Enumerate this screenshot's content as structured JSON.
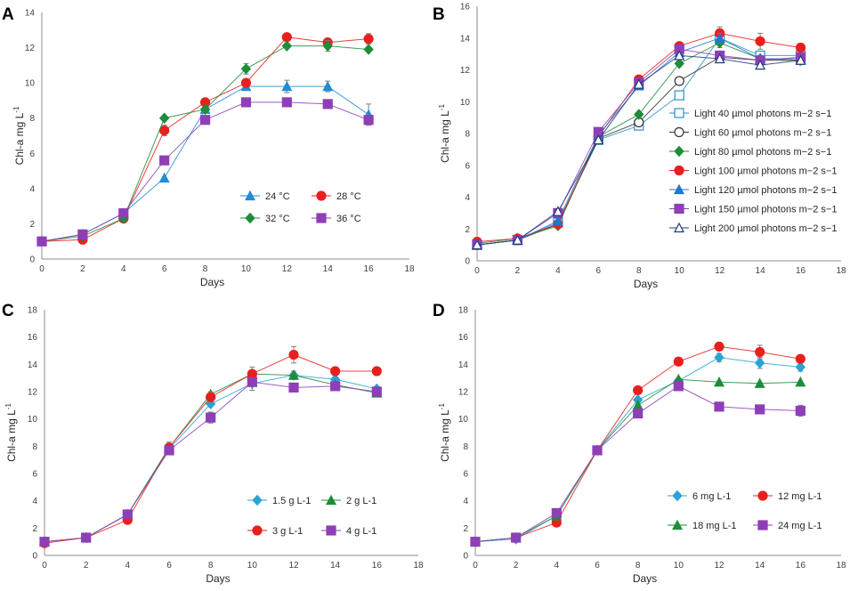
{
  "chart_data": [
    {
      "panel": "A",
      "type": "line",
      "xlabel": "Days",
      "ylabel": "Chl-a mg L",
      "ylabel_sup": "-1",
      "xlim": [
        0,
        18
      ],
      "ylim": [
        0,
        14
      ],
      "xstep": 2,
      "ystep": 2,
      "x": [
        0,
        2,
        4,
        6,
        8,
        10,
        12,
        14,
        16
      ],
      "legend_columns": 2,
      "series": [
        {
          "name": "24 °C",
          "color": "#1f8dd6",
          "marker": "triangle",
          "values": [
            1.0,
            1.4,
            2.6,
            4.6,
            8.5,
            9.8,
            9.8,
            9.8,
            8.2
          ],
          "errors": [
            0,
            0,
            0,
            0,
            0,
            0.2,
            0.35,
            0.3,
            0.6
          ]
        },
        {
          "name": "28 °C",
          "color": "#e8201d",
          "marker": "circle",
          "values": [
            1.0,
            1.1,
            2.3,
            7.3,
            8.9,
            10.0,
            12.6,
            12.3,
            12.5
          ],
          "errors": [
            0,
            0,
            0,
            0.3,
            0,
            0,
            0.2,
            0.1,
            0.3
          ]
        },
        {
          "name": "32 °C",
          "color": "#1e8c3a",
          "marker": "diamond",
          "values": [
            1.0,
            1.3,
            2.3,
            8.0,
            8.5,
            10.8,
            12.1,
            12.1,
            11.9
          ],
          "errors": [
            0,
            0,
            0,
            0,
            0,
            0.3,
            0,
            0.3,
            0
          ]
        },
        {
          "name": "36 °C",
          "color": "#8e3fb8",
          "marker": "square",
          "values": [
            1.0,
            1.4,
            2.6,
            5.6,
            7.9,
            8.9,
            8.9,
            8.8,
            7.9
          ],
          "errors": [
            0,
            0,
            0,
            0,
            0,
            0,
            0,
            0,
            0.3
          ]
        }
      ]
    },
    {
      "panel": "B",
      "type": "line",
      "xlabel": "Days",
      "ylabel": "Chl-a mg L",
      "ylabel_sup": "-1",
      "xlim": [
        0,
        18
      ],
      "ylim": [
        0,
        16
      ],
      "xstep": 2,
      "ystep": 2,
      "x": [
        0,
        2,
        4,
        6,
        8,
        10,
        12,
        14,
        16
      ],
      "legend_columns": 1,
      "series": [
        {
          "name": "Light 40 µmol photons m−2 s−1",
          "color": "#2a8fd0",
          "marker": "square-open",
          "values": [
            1.0,
            1.3,
            2.4,
            7.6,
            8.5,
            10.4,
            14.0,
            12.9,
            12.9
          ],
          "errors": [
            0,
            0,
            0,
            0,
            0,
            0.2,
            0,
            0,
            0
          ]
        },
        {
          "name": "Light 60 µmol photons m−2 s−1",
          "color": "#333333",
          "marker": "circle-open",
          "values": [
            1.0,
            1.3,
            2.3,
            7.7,
            8.7,
            11.3,
            12.8,
            12.6,
            12.6
          ],
          "errors": [
            0,
            0,
            0,
            0,
            0,
            0,
            0,
            0,
            0
          ]
        },
        {
          "name": "Light 80 µmol photons m−2 s−1",
          "color": "#1e8c3a",
          "marker": "diamond",
          "values": [
            1.1,
            1.4,
            2.2,
            7.8,
            9.2,
            12.4,
            13.7,
            12.7,
            12.6
          ],
          "errors": [
            0,
            0,
            0,
            0,
            0,
            0,
            0.3,
            0,
            0
          ]
        },
        {
          "name": "Light 100 µmol photons m−2 s−1",
          "color": "#e8201d",
          "marker": "circle",
          "values": [
            1.2,
            1.4,
            2.3,
            7.8,
            11.4,
            13.5,
            14.3,
            13.8,
            13.4
          ],
          "errors": [
            0,
            0,
            0,
            0,
            0,
            0,
            0.4,
            0.5,
            0
          ]
        },
        {
          "name": "Light 120 µmol photons m−2 s−1",
          "color": "#1f77d0",
          "marker": "triangle",
          "values": [
            1.0,
            1.3,
            2.5,
            7.9,
            11.0,
            13.1,
            14.0,
            12.7,
            12.7
          ],
          "errors": [
            0,
            0,
            0,
            0,
            0,
            0,
            0.3,
            0,
            0
          ]
        },
        {
          "name": "Light 150 µmol photons m−2 s−1",
          "color": "#8e3fb8",
          "marker": "square",
          "values": [
            1.0,
            1.3,
            3.0,
            8.1,
            11.2,
            13.3,
            12.9,
            12.6,
            12.8
          ],
          "errors": [
            0,
            0,
            0,
            0,
            0,
            0,
            0,
            0,
            0
          ]
        },
        {
          "name": "Light 200 µmol photons m−2 s−1",
          "color": "#1f3d7a",
          "marker": "triangle-open",
          "values": [
            1.0,
            1.3,
            3.1,
            7.6,
            11.1,
            12.9,
            12.7,
            12.3,
            12.6
          ],
          "errors": [
            0,
            0,
            0,
            0,
            0,
            0,
            0,
            0,
            0
          ]
        }
      ]
    },
    {
      "panel": "C",
      "type": "line",
      "xlabel": "Days",
      "ylabel": "Chl-a mg L",
      "ylabel_sup": "-1",
      "xlim": [
        0,
        18
      ],
      "ylim": [
        0,
        18
      ],
      "xstep": 2,
      "ystep": 2,
      "x": [
        0,
        2,
        4,
        6,
        8,
        10,
        12,
        14,
        16
      ],
      "legend_columns": 2,
      "series": [
        {
          "name": "1.5 g L-1",
          "color": "#29a3d8",
          "marker": "diamond",
          "values": [
            1.0,
            1.3,
            3.0,
            7.8,
            11.1,
            12.6,
            13.2,
            12.9,
            12.2
          ],
          "errors": [
            0,
            0,
            0,
            0,
            0,
            0.5,
            0,
            0,
            0
          ]
        },
        {
          "name": "2 g L-1",
          "color": "#1e8c3a",
          "marker": "triangle",
          "values": [
            1.0,
            1.3,
            3.0,
            7.9,
            11.8,
            13.3,
            13.2,
            12.5,
            11.9
          ],
          "errors": [
            0,
            0,
            0,
            0,
            0,
            0,
            0.3,
            0,
            0
          ]
        },
        {
          "name": "3 g L-1",
          "color": "#e8201d",
          "marker": "circle",
          "values": [
            0.9,
            1.3,
            2.6,
            7.9,
            11.6,
            13.3,
            14.7,
            13.5,
            13.5
          ],
          "errors": [
            0,
            0,
            0,
            0.4,
            0.4,
            0.5,
            0.6,
            0,
            0
          ]
        },
        {
          "name": "4 g L-1",
          "color": "#8e3fb8",
          "marker": "square",
          "values": [
            1.0,
            1.3,
            3.0,
            7.7,
            10.1,
            12.7,
            12.3,
            12.4,
            12.0
          ],
          "errors": [
            0,
            0,
            0,
            0,
            0.4,
            0,
            0,
            0,
            0
          ]
        }
      ]
    },
    {
      "panel": "D",
      "type": "line",
      "xlabel": "Days",
      "ylabel": "Chl-a mg L",
      "ylabel_sup": "-1",
      "xlim": [
        0,
        18
      ],
      "ylim": [
        0,
        18
      ],
      "xstep": 2,
      "ystep": 2,
      "x": [
        0,
        2,
        4,
        6,
        8,
        10,
        12,
        14,
        16
      ],
      "legend_columns": 2,
      "series": [
        {
          "name": "6 mg L-1",
          "color": "#29a3d8",
          "marker": "diamond",
          "values": [
            1.0,
            1.2,
            2.9,
            7.7,
            11.4,
            12.8,
            14.5,
            14.1,
            13.8
          ],
          "errors": [
            0,
            0,
            0,
            0,
            0,
            0,
            0.3,
            0.4,
            0.3
          ]
        },
        {
          "name": "12 mg L-1",
          "color": "#e8201d",
          "marker": "circle",
          "values": [
            1.0,
            1.3,
            2.4,
            7.7,
            12.1,
            14.2,
            15.3,
            14.9,
            14.4
          ],
          "errors": [
            0,
            0,
            0,
            0,
            0,
            0,
            0.2,
            0.5,
            0
          ]
        },
        {
          "name": "18 mg L-1",
          "color": "#1e8c3a",
          "marker": "triangle",
          "values": [
            1.0,
            1.3,
            2.9,
            7.7,
            11.0,
            12.9,
            12.7,
            12.6,
            12.7
          ],
          "errors": [
            0,
            0,
            0,
            0,
            0,
            0,
            0,
            0,
            0
          ]
        },
        {
          "name": "24 mg L-1",
          "color": "#8e3fb8",
          "marker": "square",
          "values": [
            1.0,
            1.3,
            3.1,
            7.7,
            10.4,
            12.4,
            10.9,
            10.7,
            10.6
          ],
          "errors": [
            0,
            0,
            0,
            0,
            0,
            0,
            0,
            0,
            0.4
          ]
        }
      ]
    }
  ]
}
